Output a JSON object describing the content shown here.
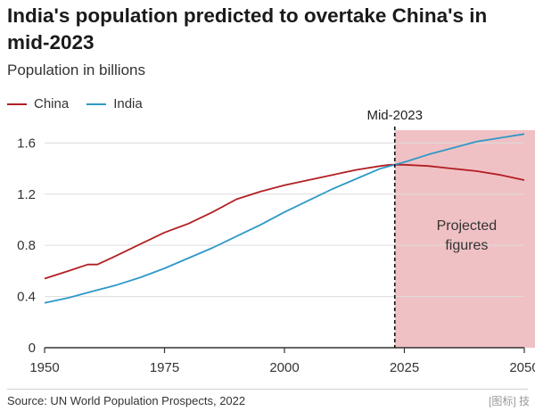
{
  "title": "India's population predicted to overtake China's in mid-2023",
  "subtitle": "Population in billions",
  "source": "Source: UN World Population Prospects, 2022",
  "watermark": "[图标] 技",
  "colors": {
    "china": "#b21f24",
    "india": "#2e98c7",
    "projection_fill": "#f0c1c4",
    "grid": "#dcdcdc",
    "axis": "#333333"
  },
  "chart_data": {
    "type": "line",
    "xlim": [
      1950,
      2050
    ],
    "ylim": [
      0,
      1.7
    ],
    "x_ticks": [
      1950,
      1975,
      2000,
      2025,
      2050
    ],
    "y_ticks": [
      0,
      0.4,
      0.8,
      1.2,
      1.6
    ],
    "x_tick_labels": [
      "1950",
      "1975",
      "2000",
      "2025",
      "2050"
    ],
    "y_tick_labels": [
      "0",
      "0.4",
      "0.8",
      "1.2",
      "1.6"
    ],
    "grid": true,
    "legend_position": "top-left",
    "series": [
      {
        "name": "China",
        "color": "#b21f24",
        "x": [
          1950,
          1955,
          1959,
          1961,
          1965,
          1970,
          1975,
          1980,
          1985,
          1990,
          1995,
          2000,
          2005,
          2010,
          2015,
          2020,
          2022,
          2023,
          2025,
          2030,
          2035,
          2040,
          2045,
          2050
        ],
        "values": [
          0.54,
          0.6,
          0.65,
          0.65,
          0.72,
          0.81,
          0.9,
          0.97,
          1.06,
          1.16,
          1.22,
          1.27,
          1.31,
          1.35,
          1.39,
          1.42,
          1.43,
          1.43,
          1.43,
          1.42,
          1.4,
          1.38,
          1.35,
          1.31
        ]
      },
      {
        "name": "India",
        "color": "#2e98c7",
        "x": [
          1950,
          1955,
          1960,
          1965,
          1970,
          1975,
          1980,
          1985,
          1990,
          1995,
          2000,
          2005,
          2010,
          2015,
          2020,
          2023,
          2025,
          2030,
          2035,
          2040,
          2045,
          2050
        ],
        "values": [
          0.35,
          0.39,
          0.44,
          0.49,
          0.55,
          0.62,
          0.7,
          0.78,
          0.87,
          0.96,
          1.06,
          1.15,
          1.24,
          1.32,
          1.4,
          1.43,
          1.45,
          1.51,
          1.56,
          1.61,
          1.64,
          1.67
        ]
      }
    ],
    "projection": {
      "from": 2023,
      "to": 2050,
      "label_lines": [
        "Projected",
        "figures"
      ]
    },
    "marker": {
      "x": 2023,
      "label": "Mid-2023"
    }
  }
}
